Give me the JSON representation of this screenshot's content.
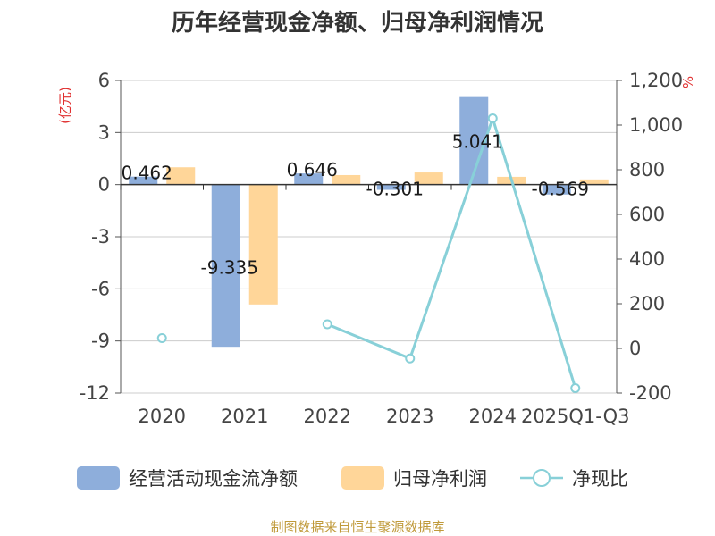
{
  "chart_data": {
    "type": "bar",
    "title": "历年经营现金净额、归母净利润情况",
    "categories": [
      "2020",
      "2021",
      "2022",
      "2023",
      "2024",
      "2025Q1-Q3"
    ],
    "y_left": {
      "unit": "(亿元)",
      "ylim": [
        -12,
        6
      ],
      "ticks": [
        6,
        3,
        0,
        -3,
        -6,
        -9,
        -12
      ]
    },
    "y_right": {
      "unit": "%",
      "ylim": [
        -200,
        1200
      ],
      "ticks": [
        1200,
        1000,
        800,
        600,
        400,
        200,
        0,
        -200
      ]
    },
    "series": [
      {
        "name": "经营活动现金流净额",
        "type": "bar",
        "axis": "left",
        "color": "#8eaedb",
        "values": [
          0.462,
          -9.335,
          0.646,
          -0.301,
          5.041,
          -0.569
        ],
        "labels": [
          "0.462",
          "-9.335",
          "0.646",
          "-0.301",
          "5.041",
          "-0.569"
        ]
      },
      {
        "name": "归母净利润",
        "type": "bar",
        "axis": "left",
        "color": "#ffd699",
        "values": [
          1.0,
          -6.9,
          0.55,
          0.7,
          0.45,
          0.3
        ]
      },
      {
        "name": "净现比",
        "type": "line",
        "axis": "right",
        "color": "#88d0d8",
        "values": [
          46,
          null,
          108,
          -45,
          1030,
          -178
        ]
      }
    ],
    "grid": true,
    "legend_position": "bottom"
  },
  "footer": {
    "source": "制图数据来自恒生聚源数据库"
  }
}
